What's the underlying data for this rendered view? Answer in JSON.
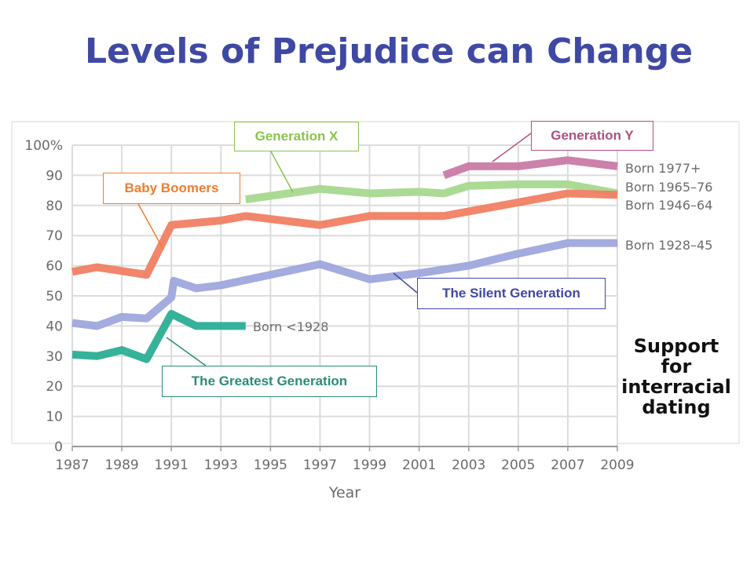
{
  "slide": {
    "title": "Levels of Prejudice can Change",
    "caption": "Support for interracial dating"
  },
  "labels": {
    "generation_x": "Generation  X",
    "generation_y": "Generation  Y",
    "baby_boomers": "Baby Boomers",
    "silent_generation": "The Silent Generation",
    "greatest_generation": "The Greatest Generation"
  },
  "colors": {
    "title": "#3f49a3",
    "generation_x": "#a6d88e",
    "generation_y": "#c97aa6",
    "baby_boomers": "#f07f63",
    "silent_generation": "#9ea6dd",
    "greatest_generation": "#2bae95",
    "axis_text": "#6b6b6b",
    "grid": "#dcdcdc",
    "plot_background": "#ffffff",
    "frame": "#d9d9d9"
  },
  "chart_data": {
    "type": "line",
    "title": "",
    "xlabel": "Year",
    "ylabel": "",
    "xlim": [
      1987,
      2009
    ],
    "ylim": [
      0,
      100
    ],
    "x_ticks": [
      "1987",
      "1989",
      "1991",
      "1993",
      "1995",
      "1997",
      "1999",
      "2001",
      "2003",
      "2005",
      "2007",
      "2009"
    ],
    "y_ticks": [
      "0",
      "10",
      "20",
      "30",
      "40",
      "50",
      "60",
      "70",
      "80",
      "90",
      "100%"
    ],
    "grid": true,
    "series": [
      {
        "name": "Born 1977+",
        "color_key": "generation_y",
        "x": [
          2002,
          2003,
          2005,
          2007,
          2009
        ],
        "y": [
          90,
          93,
          93,
          95,
          93
        ]
      },
      {
        "name": "Born 1965–76",
        "color_key": "generation_x",
        "x": [
          1994,
          1997,
          1999,
          2001,
          2002,
          2003,
          2005,
          2007,
          2009
        ],
        "y": [
          82,
          85.5,
          84,
          84.5,
          84,
          86.5,
          87,
          87,
          84
        ]
      },
      {
        "name": "Born 1946–64",
        "color_key": "baby_boomers",
        "x": [
          1987,
          1988,
          1990,
          1991,
          1993,
          1994,
          1995,
          1997,
          1999,
          2002,
          2003,
          2005,
          2007,
          2009
        ],
        "y": [
          58,
          59.5,
          57,
          73.5,
          75,
          76.5,
          75.5,
          73.5,
          76.5,
          76.5,
          78,
          81,
          84,
          83.5
        ]
      },
      {
        "name": "Born 1928–45",
        "color_key": "silent_generation",
        "x": [
          1987,
          1988,
          1989,
          1990,
          1991,
          1991.1,
          1992,
          1993,
          1995,
          1997,
          1999,
          2001,
          2003,
          2005,
          2007,
          2009
        ],
        "y": [
          41,
          40,
          43,
          42.5,
          49.5,
          55,
          52.5,
          53.5,
          57,
          60.5,
          55.5,
          57.5,
          60,
          64,
          67.5,
          67.5
        ]
      },
      {
        "name": "Born <1928",
        "color_key": "greatest_generation",
        "x": [
          1987,
          1988,
          1989,
          1990,
          1991,
          1992,
          1993,
          1994
        ],
        "y": [
          30.5,
          30,
          32,
          29,
          44,
          40,
          40,
          40
        ]
      }
    ]
  }
}
